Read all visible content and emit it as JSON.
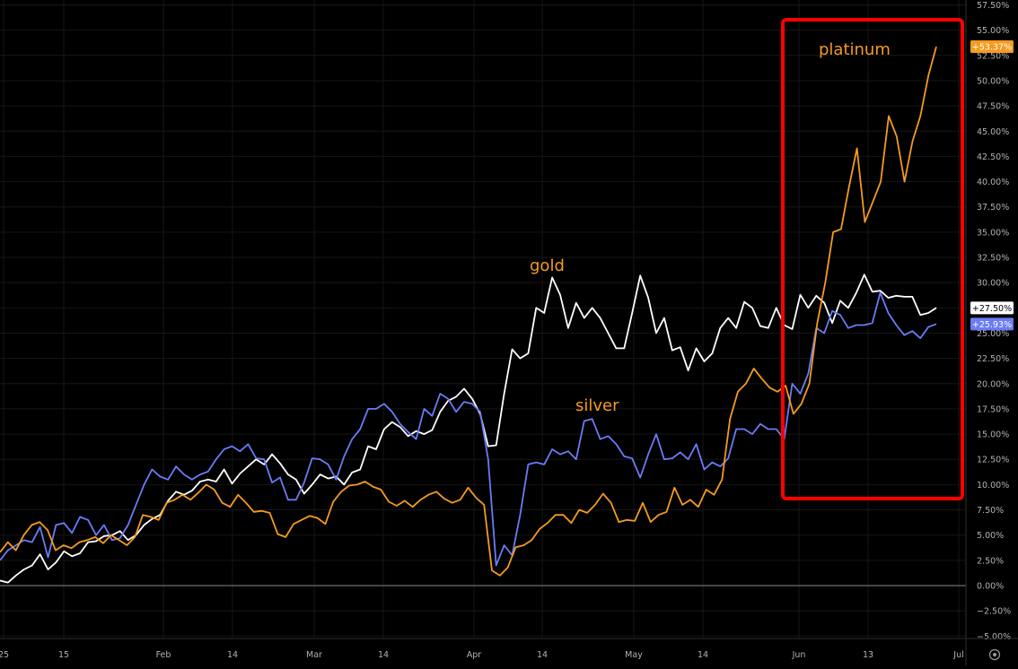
{
  "chart_data": {
    "type": "line",
    "title": "",
    "xlabel": "",
    "ylabel": "",
    "x_ticks": [
      "25",
      "15",
      "Feb",
      "14",
      "Mar",
      "14",
      "Apr",
      "14",
      "May",
      "14",
      "Jun",
      "13",
      "Jul"
    ],
    "y_ticks": [
      "57.50%",
      "55.00%",
      "52.50%",
      "50.00%",
      "47.50%",
      "45.00%",
      "42.50%",
      "40.00%",
      "37.50%",
      "35.00%",
      "32.50%",
      "30.00%",
      "27.50%",
      "25.00%",
      "22.50%",
      "20.00%",
      "17.50%",
      "15.00%",
      "12.50%",
      "10.00%",
      "7.50%",
      "5.00%",
      "2.50%",
      "0.00%",
      "−2.50%",
      "−5.00%"
    ],
    "ylim": [
      -5,
      57.5
    ],
    "grid": true,
    "series": [
      {
        "name": "gold",
        "color": "#ffffff",
        "last_label": "+27.50%",
        "values": [
          0.5,
          0.3,
          1.0,
          1.6,
          2.0,
          3.1,
          1.6,
          2.3,
          3.4,
          2.9,
          3.2,
          4.3,
          4.4,
          4.9,
          5.0,
          5.4,
          4.5,
          5.0,
          6.0,
          6.6,
          7.0,
          8.4,
          9.3,
          9.0,
          9.4,
          10.3,
          10.5,
          10.3,
          11.5,
          10.1,
          11.1,
          11.8,
          12.5,
          12.0,
          13.0,
          12.1,
          11.0,
          10.5,
          9.1,
          10.0,
          11.0,
          10.6,
          10.8,
          10.0,
          11.2,
          11.5,
          13.8,
          13.5,
          15.5,
          16.2,
          15.7,
          14.8,
          15.3,
          15.0,
          15.4,
          17.2,
          18.3,
          18.7,
          19.5,
          18.5,
          17.0,
          13.8,
          13.9,
          19.0,
          23.4,
          22.5,
          23.0,
          27.5,
          27.0,
          30.5,
          28.8,
          25.5,
          28.0,
          26.5,
          27.5,
          26.5,
          25.0,
          23.5,
          23.5,
          27.0,
          30.7,
          28.5,
          25.0,
          26.5,
          23.3,
          23.6,
          21.3,
          23.5,
          22.2,
          23.0,
          25.5,
          26.5,
          25.5,
          28.1,
          27.5,
          25.7,
          25.5,
          27.5,
          25.8,
          25.4,
          28.8,
          27.5,
          28.7,
          28.0,
          26.0,
          28.2,
          27.5,
          29.0,
          30.8,
          29.1,
          29.2,
          28.5,
          28.7,
          28.6,
          28.6,
          26.8,
          27.0,
          27.5
        ]
      },
      {
        "name": "silver",
        "color": "#6b7bf5",
        "last_label": "+25.93%",
        "values": [
          2.5,
          3.5,
          4.0,
          4.5,
          4.3,
          5.8,
          2.8,
          6.0,
          6.2,
          5.2,
          6.8,
          6.5,
          5.0,
          6.0,
          4.5,
          4.7,
          6.0,
          8.0,
          10.0,
          11.5,
          10.8,
          10.5,
          11.8,
          11.0,
          10.5,
          11.0,
          11.3,
          12.5,
          13.5,
          13.8,
          13.3,
          14.0,
          12.6,
          12.5,
          10.2,
          10.7,
          8.5,
          8.5,
          10.2,
          12.6,
          12.5,
          12.0,
          10.5,
          12.8,
          14.5,
          15.5,
          17.5,
          17.5,
          18.0,
          17.2,
          16.0,
          15.2,
          14.5,
          17.5,
          16.8,
          19.0,
          18.5,
          17.2,
          18.2,
          18.0,
          17.2,
          12.5,
          2.0,
          4.0,
          3.0,
          7.0,
          12.0,
          12.2,
          12.0,
          13.5,
          13.0,
          13.3,
          12.5,
          16.3,
          16.5,
          14.5,
          14.8,
          14.0,
          12.8,
          12.6,
          10.7,
          13.0,
          15.0,
          12.5,
          12.6,
          13.2,
          12.5,
          14.0,
          11.5,
          12.2,
          11.8,
          12.6,
          15.5,
          15.5,
          15.0,
          16.0,
          15.5,
          15.5,
          14.5,
          20.0,
          19.0,
          21.0,
          25.5,
          25.0,
          27.2,
          26.8,
          25.5,
          25.8,
          25.8,
          26.0,
          29.0,
          27.0,
          25.8,
          24.8,
          25.2,
          24.5,
          25.6,
          25.9
        ]
      },
      {
        "name": "platinum",
        "color": "#f59b1f",
        "last_label": "+53.37%",
        "values": [
          3.3,
          4.3,
          3.5,
          5.0,
          6.0,
          6.3,
          5.5,
          3.5,
          4.0,
          3.7,
          4.3,
          4.5,
          4.8,
          4.2,
          5.0,
          4.5,
          4.0,
          4.8,
          7.0,
          6.8,
          6.5,
          8.2,
          8.5,
          9.0,
          8.5,
          9.2,
          10.0,
          9.5,
          8.2,
          7.8,
          9.0,
          8.2,
          7.3,
          7.4,
          7.2,
          5.1,
          4.8,
          6.1,
          6.5,
          6.9,
          6.7,
          6.1,
          8.3,
          9.3,
          9.9,
          10.0,
          10.3,
          9.8,
          9.5,
          8.3,
          7.9,
          8.4,
          7.8,
          8.5,
          9.0,
          9.3,
          8.6,
          8.2,
          8.5,
          9.7,
          8.7,
          8.0,
          1.5,
          1.0,
          1.8,
          3.8,
          4.0,
          4.5,
          5.6,
          6.2,
          7.0,
          7.0,
          6.2,
          7.5,
          7.2,
          8.0,
          9.1,
          8.2,
          6.3,
          6.5,
          6.4,
          8.2,
          6.3,
          7.0,
          7.3,
          9.7,
          8.0,
          8.5,
          7.8,
          9.5,
          9.0,
          10.5,
          16.5,
          19.2,
          20.0,
          21.5,
          20.5,
          19.6,
          19.2,
          19.8,
          17.0,
          18.0,
          20.0,
          26.0,
          30.0,
          35.0,
          35.3,
          39.5,
          43.3,
          36.0,
          38.0,
          40.0,
          46.5,
          44.5,
          40.0,
          44.0,
          46.5,
          50.5,
          53.37
        ]
      }
    ],
    "annotations": [
      {
        "text": "platinum",
        "color": "#f59b1f"
      },
      {
        "text": "gold",
        "color": "#f59b1f"
      },
      {
        "text": "silver",
        "color": "#f59b1f"
      }
    ],
    "highlight_box_color": "#ff0000"
  },
  "ui": {
    "settings_icon": "gear-icon"
  }
}
